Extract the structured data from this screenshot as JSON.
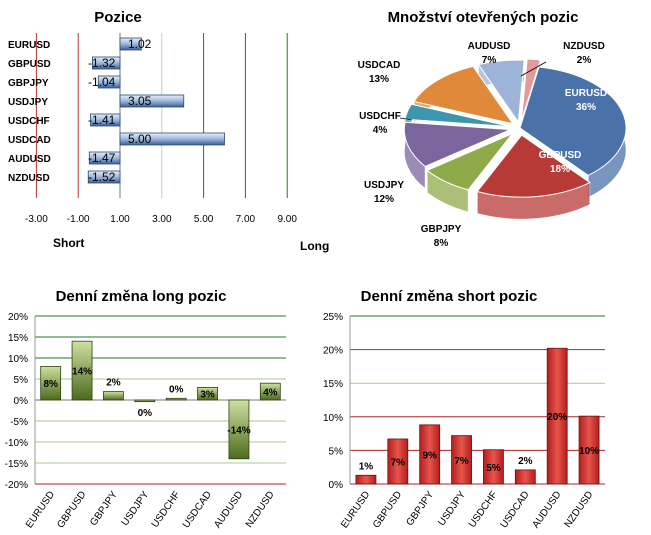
{
  "colors": {
    "pos_light": "#c9d9ee",
    "pos_dark": "#3a5f94",
    "grid_green": "#1e7a1e",
    "grid_red": "#b02222",
    "long_bar_light": "#cfe0a0",
    "long_bar_dark": "#4c6b1e",
    "short_bar_light": "#e8554c",
    "short_bar_dark": "#b11f1f",
    "pie_eurusd": "#4a72a8",
    "pie_gbpusd": "#b73a36",
    "pie_gbpjpy": "#8faa4a",
    "pie_usdjpy": "#7b659e",
    "pie_usdchf": "#3e96ae",
    "pie_usdcad": "#e0893a",
    "pie_audusd": "#9db4d8",
    "pie_nzdusd": "#e49a9a"
  },
  "chart_data": [
    {
      "type": "bar",
      "orientation": "horizontal",
      "title": "Pozice",
      "categories": [
        "EURUSD",
        "GBPUSD",
        "GBPJPY",
        "USDJPY",
        "USDCHF",
        "USDCAD",
        "AUDUSD",
        "NZDUSD"
      ],
      "values": [
        1.02,
        -1.32,
        -1.04,
        3.05,
        -1.41,
        5.0,
        -1.47,
        -1.52
      ],
      "value_labels": [
        "1.02",
        "-1.32",
        "-1.04",
        "3.05",
        "-1.41",
        "5.00",
        "-1.47",
        "-1.52"
      ],
      "xlim": [
        -3,
        9
      ],
      "ticks": [
        -3,
        -1,
        1,
        3,
        5,
        7,
        9
      ],
      "tick_labels": [
        "-3.00",
        "-1.00",
        "1.00",
        "3.00",
        "5.00",
        "7.00",
        "9.00"
      ],
      "label_short": "Short",
      "label_long": "Long"
    },
    {
      "type": "pie",
      "title": "Množství otevřených pozic",
      "slices": [
        {
          "name": "EURUSD",
          "value": 36,
          "label": "36%"
        },
        {
          "name": "GBPUSD",
          "value": 18,
          "label": "18%"
        },
        {
          "name": "GBPJPY",
          "value": 8,
          "label": "8%"
        },
        {
          "name": "USDJPY",
          "value": 12,
          "label": "12%"
        },
        {
          "name": "USDCHF",
          "value": 4,
          "label": "4%"
        },
        {
          "name": "USDCAD",
          "value": 13,
          "label": "13%"
        },
        {
          "name": "AUDUSD",
          "value": 7,
          "label": "7%"
        },
        {
          "name": "NZDUSD",
          "value": 2,
          "label": "2%"
        }
      ]
    },
    {
      "type": "bar",
      "title": "Denní změna long pozic",
      "categories": [
        "EURUSD",
        "GBPUSD",
        "GBPJPY",
        "USDJPY",
        "USDCHF",
        "USDCAD",
        "AUDUSD",
        "NZDUSD"
      ],
      "values": [
        8,
        14,
        2,
        -0.4,
        0.4,
        3,
        -14,
        4
      ],
      "value_labels": [
        "8%",
        "14%",
        "2%",
        "0%",
        "0%",
        "3%",
        "-14%",
        "4%"
      ],
      "ylim": [
        -20,
        20
      ],
      "ticks": [
        -20,
        -15,
        -10,
        -5,
        0,
        5,
        10,
        15,
        20
      ],
      "tick_labels": [
        "-20%",
        "-15%",
        "-10%",
        "-5%",
        "0%",
        "5%",
        "10%",
        "15%",
        "20%"
      ]
    },
    {
      "type": "bar",
      "title": "Denní změna short pozic",
      "categories": [
        "EURUSD",
        "GBPUSD",
        "GBPJPY",
        "USDJPY",
        "USDCHF",
        "USDCAD",
        "AUDUSD",
        "NZDUSD"
      ],
      "values": [
        1.3,
        6.7,
        8.8,
        7.2,
        5.1,
        2.1,
        20.2,
        10.1
      ],
      "value_labels": [
        "1%",
        "7%",
        "9%",
        "7%",
        "5%",
        "2%",
        "20%",
        "10%"
      ],
      "ylim": [
        0,
        25
      ],
      "ticks": [
        0,
        5,
        10,
        15,
        20,
        25
      ],
      "tick_labels": [
        "0%",
        "5%",
        "10%",
        "15%",
        "20%",
        "25%"
      ]
    }
  ]
}
